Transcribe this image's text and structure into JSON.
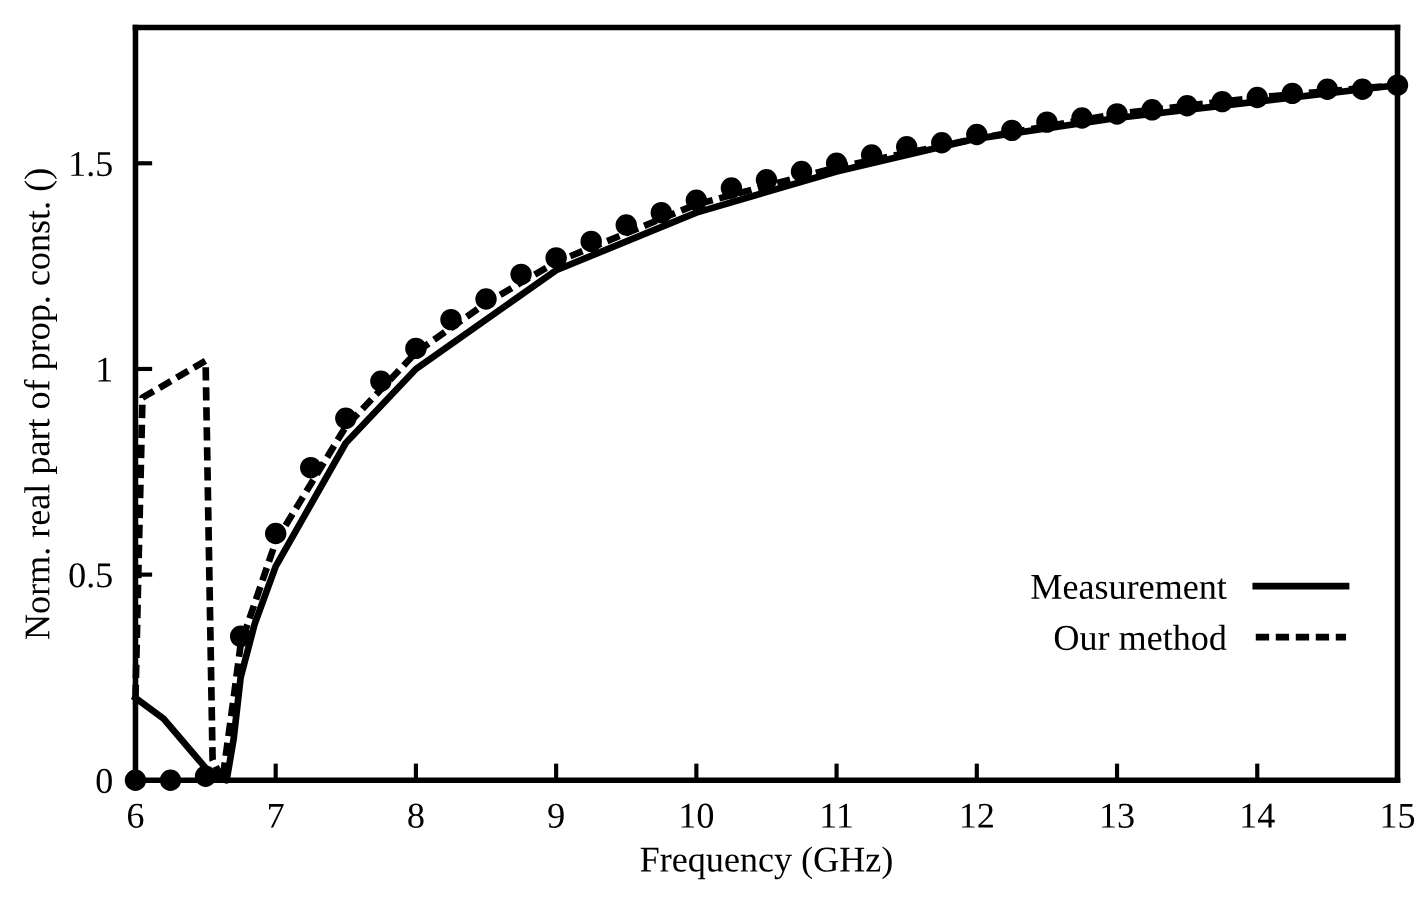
{
  "chart_data": {
    "type": "line",
    "xlabel": "Frequency (GHz)",
    "ylabel": "Norm. real part of prop. const. ()",
    "xlim": [
      6,
      15
    ],
    "xticks": [
      6,
      7,
      8,
      9,
      10,
      11,
      12,
      13,
      14,
      15
    ],
    "ylim": [
      0,
      1.83
    ],
    "yticks": [
      0,
      0.5,
      1,
      1.5
    ],
    "grid": false,
    "legend": "bottom right",
    "series": [
      {
        "name": "Measurement",
        "color": "#000000",
        "line_style": "solid",
        "marker": "none",
        "x": [
          6,
          6.2,
          6.4,
          6.55,
          6.65,
          6.7,
          6.75,
          6.85,
          7,
          7.5,
          8,
          9,
          10,
          11,
          12,
          13,
          14,
          15
        ],
        "values": [
          0.2,
          0.15,
          0.07,
          0.01,
          0.0,
          0.1,
          0.25,
          0.38,
          0.52,
          0.82,
          1.0,
          1.24,
          1.38,
          1.48,
          1.56,
          1.61,
          1.65,
          1.69
        ]
      },
      {
        "name": "Our method",
        "color": "#000000",
        "line_style": "dashed",
        "marker": "none",
        "x": [
          6,
          6.02,
          6.05,
          6.5,
          6.55,
          6.62,
          6.7,
          6.75,
          7,
          7.5,
          8,
          8.5,
          9,
          10,
          11,
          12,
          13,
          14,
          15
        ],
        "values": [
          0.2,
          0.5,
          0.93,
          1.02,
          0.05,
          0.0,
          0.2,
          0.33,
          0.58,
          0.86,
          1.04,
          1.16,
          1.26,
          1.4,
          1.49,
          1.56,
          1.62,
          1.66,
          1.69
        ]
      },
      {
        "type": "scatter",
        "color": "#000000",
        "marker": "circle",
        "x": [
          6,
          6.25,
          6.5,
          6.75,
          7,
          7.25,
          7.5,
          7.75,
          8,
          8.25,
          8.5,
          8.75,
          9,
          9.25,
          9.5,
          9.75,
          10,
          10.25,
          10.5,
          10.75,
          11,
          11.25,
          11.5,
          11.75,
          12,
          12.25,
          12.5,
          12.75,
          13,
          13.25,
          13.5,
          13.75,
          14,
          14.25,
          14.5,
          14.75,
          15
        ],
        "values": [
          0,
          0,
          0.01,
          0.35,
          0.6,
          0.76,
          0.88,
          0.97,
          1.05,
          1.12,
          1.17,
          1.23,
          1.27,
          1.31,
          1.35,
          1.38,
          1.41,
          1.44,
          1.46,
          1.48,
          1.5,
          1.52,
          1.54,
          1.55,
          1.57,
          1.58,
          1.6,
          1.61,
          1.62,
          1.63,
          1.64,
          1.65,
          1.66,
          1.67,
          1.68,
          1.68,
          1.69
        ]
      }
    ]
  }
}
